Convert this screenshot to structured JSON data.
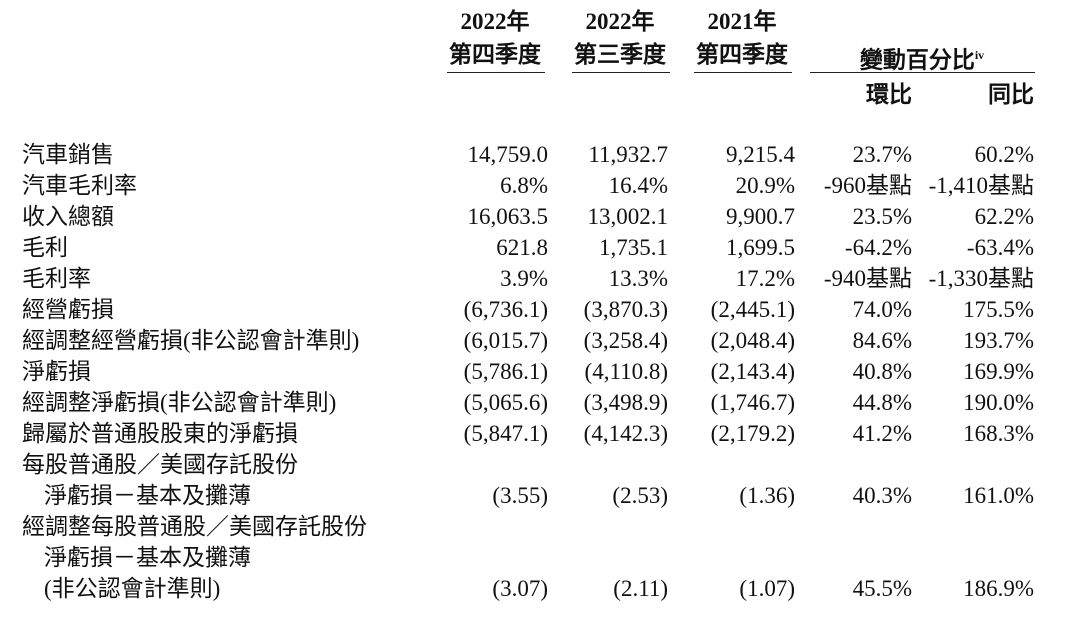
{
  "table": {
    "columns": [
      {
        "year": "2022年",
        "quarter": "第四季度"
      },
      {
        "year": "2022年",
        "quarter": "第三季度"
      },
      {
        "year": "2021年",
        "quarter": "第四季度"
      }
    ],
    "change_header": {
      "text": "變動百分比",
      "sup": "iv"
    },
    "change_columns": [
      "環比",
      "同比"
    ],
    "rows": [
      {
        "label": [
          "汽車銷售"
        ],
        "cells": [
          "14,759.0",
          "11,932.7",
          "9,215.4",
          "23.7%",
          "60.2%"
        ]
      },
      {
        "label": [
          "汽車毛利率"
        ],
        "cells": [
          "6.8%",
          "16.4%",
          "20.9%",
          "-960基點",
          "-1,410基點"
        ]
      },
      {
        "label": [
          "收入總額"
        ],
        "cells": [
          "16,063.5",
          "13,002.1",
          "9,900.7",
          "23.5%",
          "62.2%"
        ]
      },
      {
        "label": [
          "毛利"
        ],
        "cells": [
          "621.8",
          "1,735.1",
          "1,699.5",
          "-64.2%",
          "-63.4%"
        ]
      },
      {
        "label": [
          "毛利率"
        ],
        "cells": [
          "3.9%",
          "13.3%",
          "17.2%",
          "-940基點",
          "-1,330基點"
        ]
      },
      {
        "label": [
          "經營虧損"
        ],
        "cells": [
          "(6,736.1)",
          "(3,870.3)",
          "(2,445.1)",
          "74.0%",
          "175.5%"
        ]
      },
      {
        "label": [
          "經調整經營虧損(非公認會計準則)"
        ],
        "cells": [
          "(6,015.7)",
          "(3,258.4)",
          "(2,048.4)",
          "84.6%",
          "193.7%"
        ]
      },
      {
        "label": [
          "淨虧損"
        ],
        "cells": [
          "(5,786.1)",
          "(4,110.8)",
          "(2,143.4)",
          "40.8%",
          "169.9%"
        ]
      },
      {
        "label": [
          "經調整淨虧損(非公認會計準則)"
        ],
        "cells": [
          "(5,065.6)",
          "(3,498.9)",
          "(1,746.7)",
          "44.8%",
          "190.0%"
        ]
      },
      {
        "label": [
          "歸屬於普通股股東的淨虧損"
        ],
        "cells": [
          "(5,847.1)",
          "(4,142.3)",
          "(2,179.2)",
          "41.2%",
          "168.3%"
        ]
      },
      {
        "label": [
          "每股普通股／美國存託股份",
          "淨虧損－基本及攤薄"
        ],
        "cells": [
          "(3.55)",
          "(2.53)",
          "(1.36)",
          "40.3%",
          "161.0%"
        ]
      },
      {
        "label": [
          "經調整每股普通股／美國存託股份",
          "淨虧損－基本及攤薄",
          "(非公認會計準則)"
        ],
        "cells": [
          "(3.07)",
          "(2.11)",
          "(1.07)",
          "45.5%",
          "186.9%"
        ]
      }
    ]
  }
}
